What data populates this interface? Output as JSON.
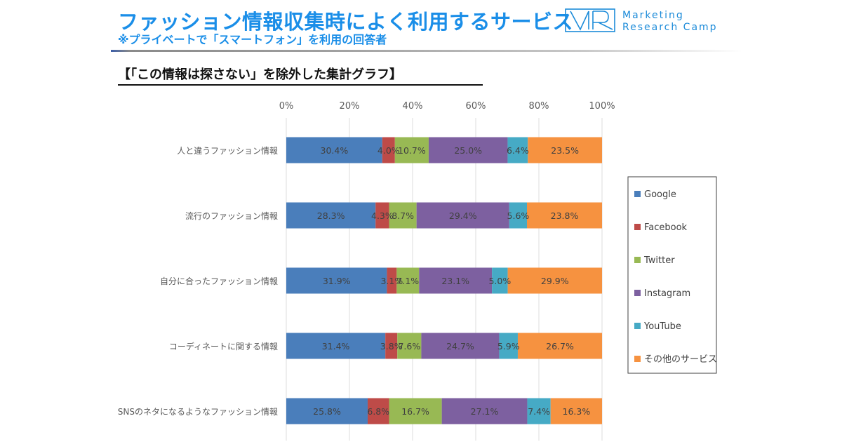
{
  "header": {
    "title": "ファッション情報収集時によく利用するサービス",
    "subtitle": "※プライベートで「スマートフォン」を利用の回答者",
    "logo_line1": "Marketing",
    "logo_line2": "Research Camp",
    "logo_mark": "MR"
  },
  "section_heading": "【「この情報は探さない」を除外した集計グラフ】",
  "chart_data": {
    "type": "bar",
    "orientation": "horizontal",
    "stacked": "100%",
    "title": "【「この情報は探さない」を除外した集計グラフ】",
    "xlabel": "",
    "ylabel": "",
    "xlim": [
      0,
      100
    ],
    "x_ticks": [
      0,
      20,
      40,
      60,
      80,
      100
    ],
    "x_tick_labels": [
      "0%",
      "20%",
      "40%",
      "60%",
      "80%",
      "100%"
    ],
    "grid": true,
    "legend_position": "right",
    "categories": [
      "人と違うファッション情報",
      "流行のファッション情報",
      "自分に合ったファッション情報",
      "コーディネートに関する情報",
      "SNSのネタになるようなファッション情報"
    ],
    "series": [
      {
        "name": "Google",
        "color": "#4a7ebb",
        "values": [
          30.4,
          28.3,
          31.9,
          31.4,
          25.8
        ],
        "labels": [
          "30.4%",
          "28.3%",
          "31.9%",
          "31.4%",
          "25.8%"
        ]
      },
      {
        "name": "Facebook",
        "color": "#be4b48",
        "values": [
          4.0,
          4.3,
          3.1,
          3.8,
          6.8
        ],
        "labels": [
          "4.0%",
          "4.3%",
          "3.1%",
          "3.8%",
          "6.8%"
        ]
      },
      {
        "name": "Twitter",
        "color": "#98b954",
        "values": [
          10.7,
          8.7,
          7.1,
          7.6,
          16.7
        ],
        "labels": [
          "10.7%",
          "8.7%",
          "7.1%",
          "7.6%",
          "16.7%"
        ]
      },
      {
        "name": "Instagram",
        "color": "#7d60a0",
        "values": [
          25.0,
          29.4,
          23.1,
          24.7,
          27.1
        ],
        "labels": [
          "25.0%",
          "29.4%",
          "23.1%",
          "24.7%",
          "27.1%"
        ]
      },
      {
        "name": "YouTube",
        "color": "#46aac5",
        "values": [
          6.4,
          5.6,
          5.0,
          5.9,
          7.4
        ],
        "labels": [
          "6.4%",
          "5.6%",
          "5.0%",
          "5.9%",
          "7.4%"
        ]
      },
      {
        "name": "その他のサービス",
        "color": "#f69240",
        "values": [
          23.5,
          23.8,
          29.9,
          26.7,
          16.3
        ],
        "labels": [
          "23.5%",
          "23.8%",
          "29.9%",
          "26.7%",
          "16.3%"
        ]
      }
    ]
  }
}
